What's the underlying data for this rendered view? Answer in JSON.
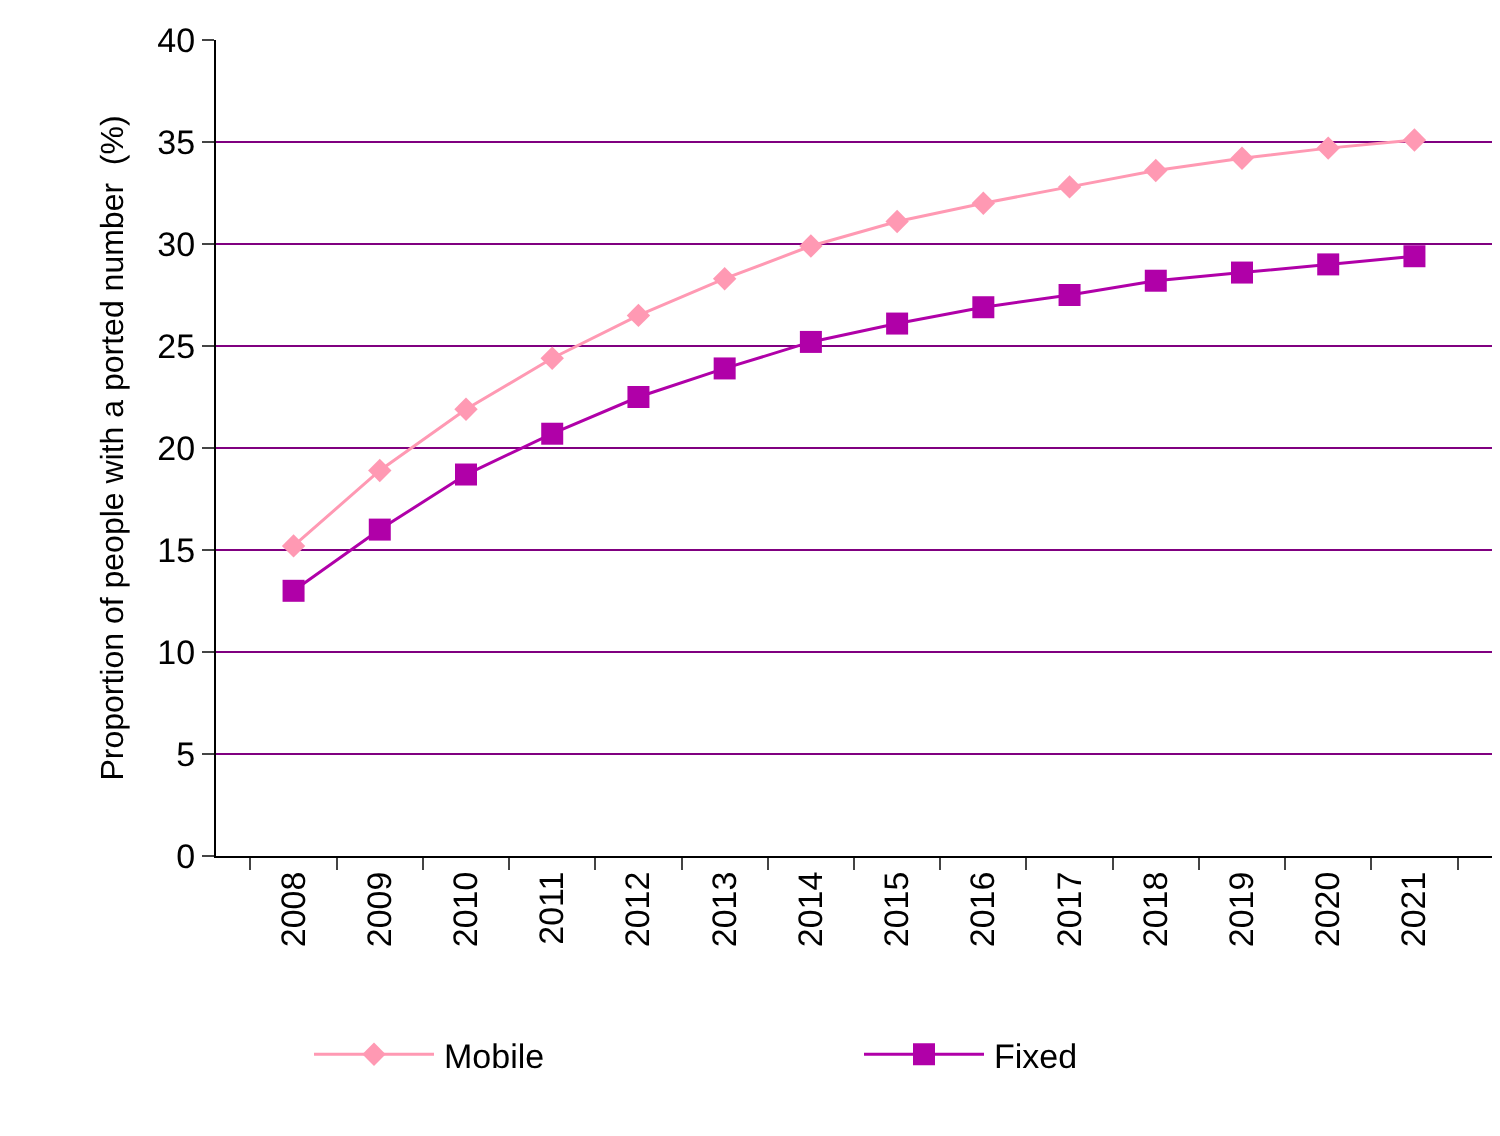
{
  "chart_data": {
    "type": "line",
    "ylabel": "Proportion of people with a ported number  (%)",
    "categories": [
      "2008",
      "2009",
      "2010",
      "2011",
      "2012",
      "2013",
      "2014",
      "2015",
      "2016",
      "2017",
      "2018",
      "2019",
      "2020",
      "2021"
    ],
    "series": [
      {
        "name": "Mobile",
        "color": "#ff99b3",
        "marker": "diamond",
        "values": [
          15.2,
          18.9,
          21.9,
          24.4,
          26.5,
          28.3,
          29.9,
          31.1,
          32.0,
          32.8,
          33.6,
          34.2,
          34.7,
          35.1
        ]
      },
      {
        "name": "Fixed",
        "color": "#b000a8",
        "marker": "square",
        "values": [
          13.0,
          16.0,
          18.7,
          20.7,
          22.5,
          23.9,
          25.2,
          26.1,
          26.9,
          27.5,
          28.2,
          28.6,
          29.0,
          29.4
        ]
      }
    ],
    "ylim": [
      0,
      40
    ],
    "yticks": [
      0,
      5,
      10,
      15,
      20,
      25,
      30,
      35,
      40
    ],
    "grid": "y",
    "legend": "bottom",
    "line_style": "solid"
  }
}
